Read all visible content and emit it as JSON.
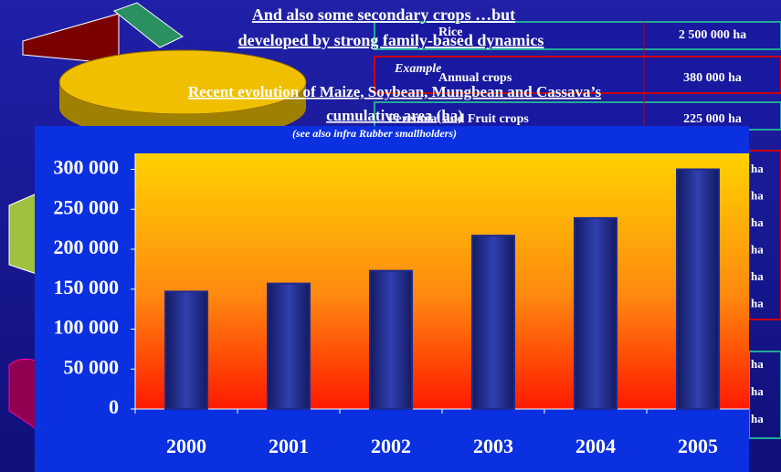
{
  "slide": {
    "heading": [
      "And also some secondary crops …but",
      "developed by strong family-based dynamics"
    ],
    "example": "Example",
    "table": [
      [
        "Rice",
        "2 500 000 ha"
      ],
      [
        "Annual crops",
        "380 000 ha"
      ],
      [
        "Perennial and Fruit crops",
        "225 000 ha"
      ]
    ],
    "side_units": [
      "ha",
      "ha",
      "ha",
      "ha",
      "ha",
      "ha",
      "ha",
      "ha",
      "ha"
    ]
  },
  "chart_data": {
    "type": "bar",
    "title": [
      "Recent evolution of Maize, Soybean, Mungbean and Cassava’s",
      "cumulative area (ha)"
    ],
    "subtitle": "(see also infra Rubber smallholders)",
    "categories": [
      "2000",
      "2001",
      "2002",
      "2003",
      "2004",
      "2005"
    ],
    "values": [
      147000,
      157000,
      173000,
      217000,
      239000,
      300000
    ],
    "color": "#1c2a8c",
    "ylim": [
      0,
      320000
    ],
    "yticks": [
      0,
      {
        "value": 50000,
        "label": "50 000"
      },
      {
        "value": 100000,
        "label": "100 000"
      },
      {
        "value": 150000,
        "label": "150 000"
      },
      {
        "value": 200000,
        "label": "200 000"
      },
      {
        "value": 250000,
        "label": "250 000"
      },
      {
        "value": 300000,
        "label": "300 000"
      }
    ],
    "grid": false
  }
}
